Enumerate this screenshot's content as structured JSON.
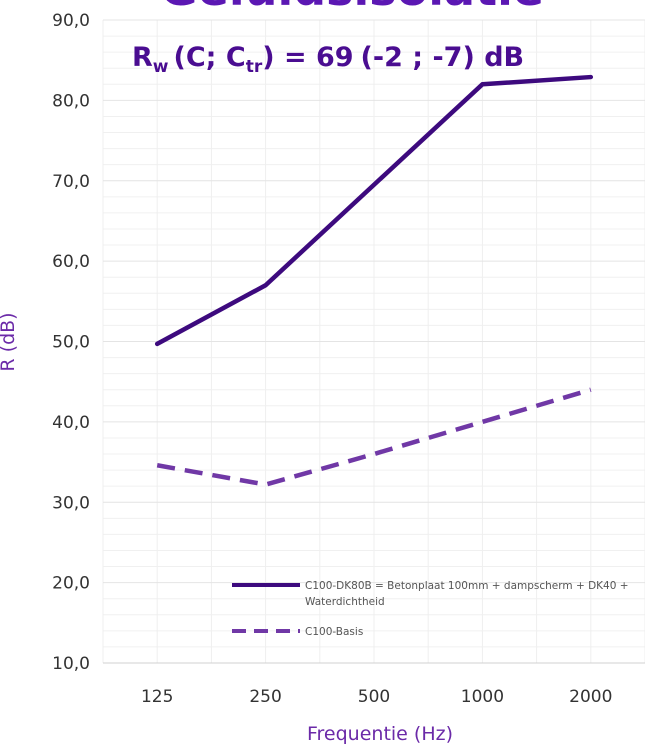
{
  "chart_data": {
    "type": "line",
    "title": "Geluidsisolatie",
    "annotation": {
      "text": "Rw (C; Ctr) = 69 (-2 ; -7) dB",
      "parts": {
        "r": "R",
        "w": "w",
        "open1": "(C; C",
        "tr": "tr",
        "close1": ") = 69",
        "rest": "(-2 ; -7) dB"
      }
    },
    "xlabel": "Frequentie (Hz)",
    "ylabel": "R (dB)",
    "categories": [
      "125",
      "250",
      "500",
      "1000",
      "2000"
    ],
    "ylim": [
      10,
      90
    ],
    "yticks": [
      "10,0",
      "20,0",
      "30,0",
      "40,0",
      "50,0",
      "60,0",
      "70,0",
      "80,0",
      "90,0"
    ],
    "grid": true,
    "legend_position": "bottom-right",
    "series": [
      {
        "name": "C100-DK80B = Betonplaat 100mm + dampscherm + DK40 + Waterdichtheid",
        "legend_lines": [
          "C100-DK80B = Betonplaat 100mm + dampscherm + DK40 +",
          "Waterdichtheid"
        ],
        "values": [
          49.7,
          57.0,
          69.5,
          82.0,
          82.9
        ],
        "color": "#3d0a7e",
        "style": "solid"
      },
      {
        "name": "C100-Basis",
        "legend_lines": [
          "C100-Basis"
        ],
        "values": [
          34.6,
          32.2,
          36.0,
          40.0,
          44.0
        ],
        "color": "#7038a6",
        "style": "dashed"
      }
    ]
  },
  "colors": {
    "title": "#5b17b3",
    "annotation": "#4a0d91",
    "axis_title": "#6b2aa8",
    "grid": "#e4e4e4",
    "axis": "#d0d0d0"
  }
}
